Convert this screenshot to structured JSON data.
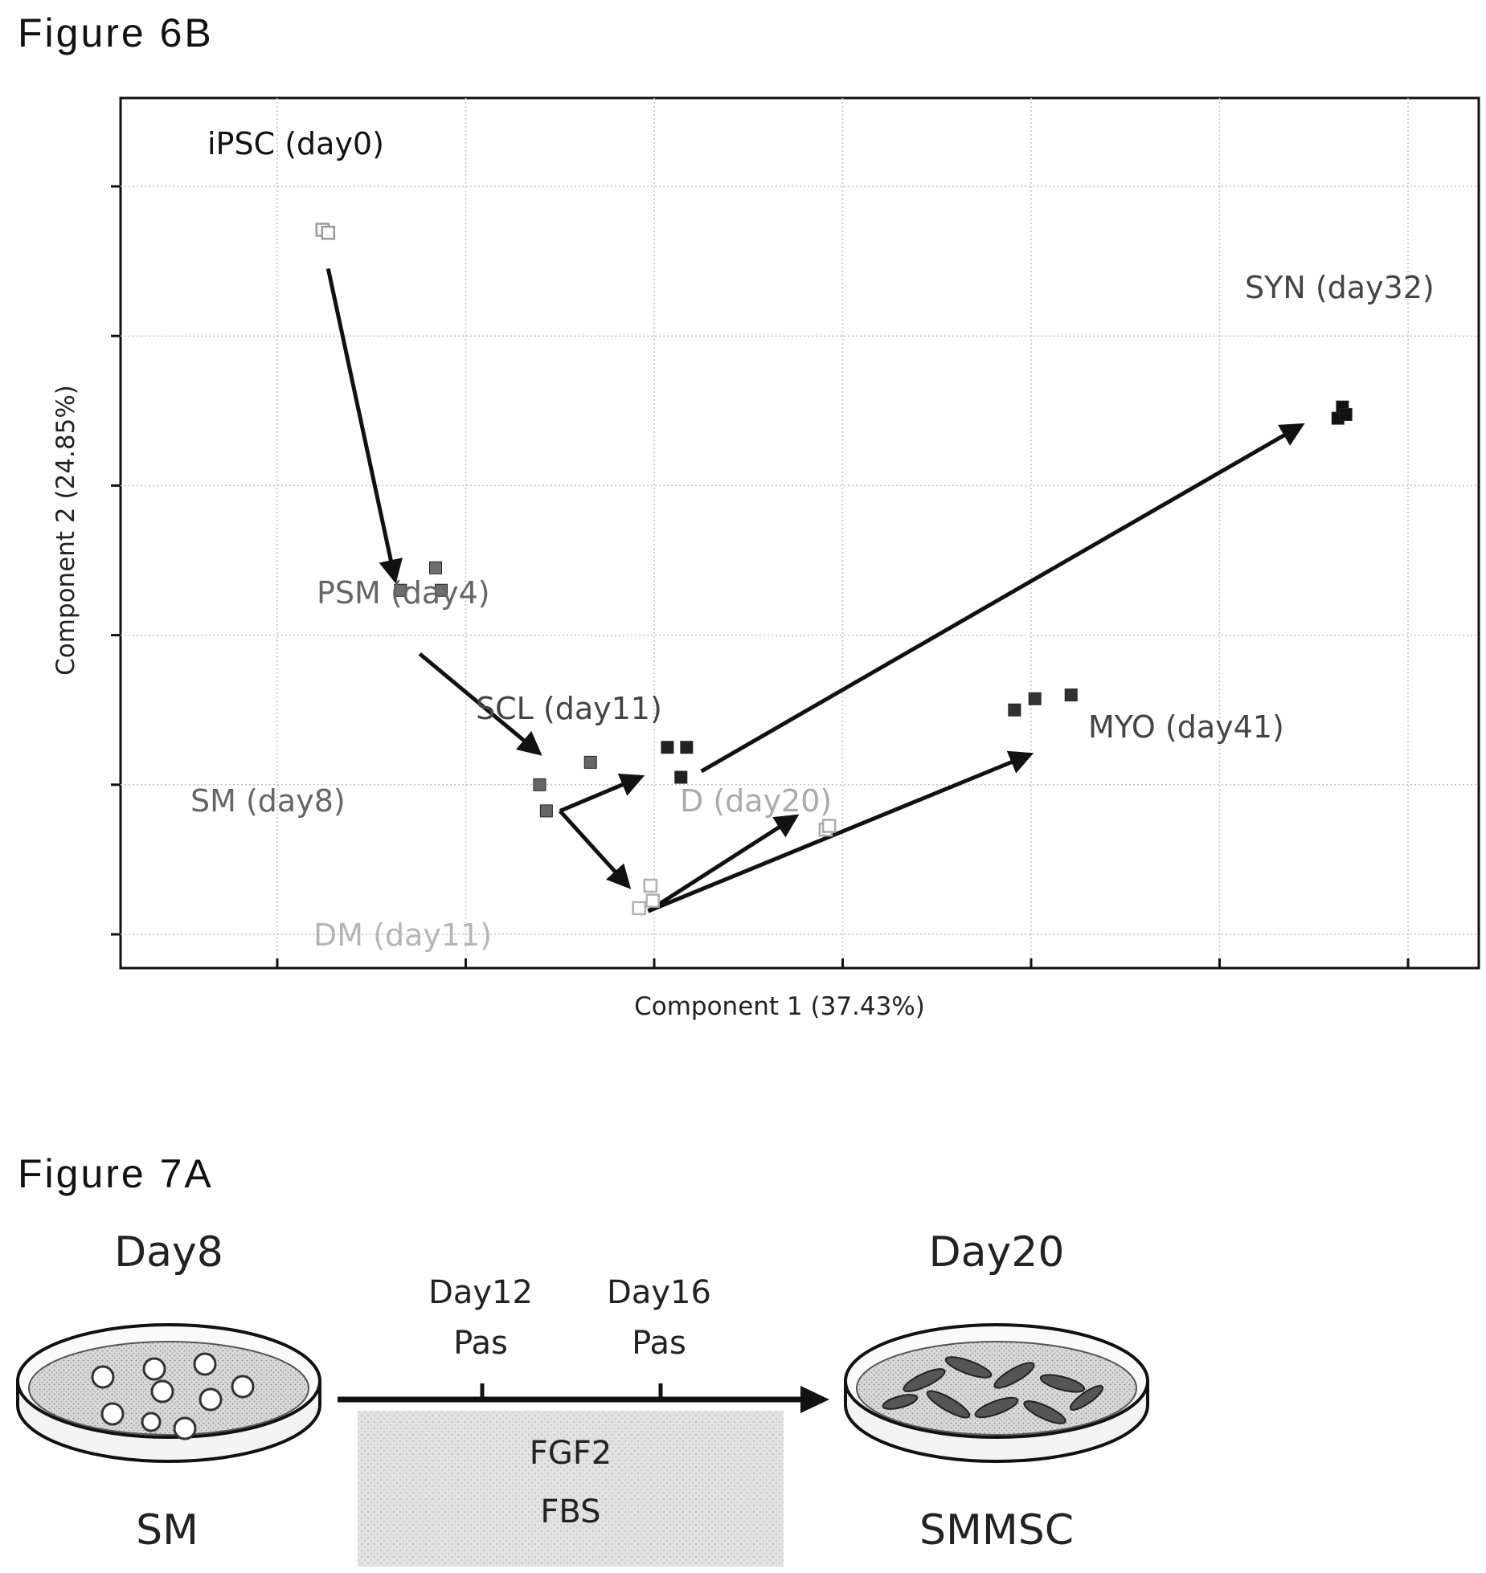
{
  "figure_6b": {
    "label": "Figure 6B"
  },
  "figure_7a": {
    "label": "Figure 7A",
    "start_day": "Day8",
    "end_day": "Day20",
    "passage_1_day": "Day12",
    "passage_1_label": "Pas",
    "passage_2_day": "Day16",
    "passage_2_label": "Pas",
    "medium_line_1": "FGF2",
    "medium_line_2": "FBS",
    "start_cells": "SM",
    "end_cells": "SMMSC"
  },
  "chart_data": {
    "type": "scatter",
    "title": "",
    "xlabel": "Component 1 (37.43%)",
    "ylabel": "Component 2 (24.85%)",
    "xlim": [
      0,
      100
    ],
    "ylim": [
      0,
      100
    ],
    "grid": true,
    "tick_labels_shown": false,
    "series": [
      {
        "name": "iPSC (day0)",
        "color": "#9a9a9a",
        "marker": "open-square",
        "points": [
          [
            4.0,
            94.2
          ],
          [
            4.5,
            93.8
          ]
        ]
      },
      {
        "name": "PSM (day4)",
        "color": "#6e6e6e",
        "marker": "filled-square",
        "points": [
          [
            10.9,
            46.0
          ],
          [
            14.0,
            49.0
          ],
          [
            14.5,
            46.0
          ]
        ]
      },
      {
        "name": "SM (day8)",
        "color": "#666666",
        "marker": "filled-square",
        "points": [
          [
            23.2,
            20.0
          ],
          [
            23.8,
            16.5
          ],
          [
            27.7,
            23.0
          ]
        ]
      },
      {
        "name": "SCL (day11)",
        "color": "#222222",
        "marker": "filled-square",
        "points": [
          [
            34.5,
            25.0
          ],
          [
            36.2,
            25.0
          ],
          [
            35.7,
            21.0
          ]
        ]
      },
      {
        "name": "DM (day11)",
        "color": "#b0b0b0",
        "marker": "open-square",
        "points": [
          [
            32.0,
            3.5
          ],
          [
            33.0,
            6.5
          ],
          [
            33.2,
            4.5
          ]
        ]
      },
      {
        "name": "D (day20)",
        "color": "#aaaaaa",
        "marker": "open-square",
        "points": [
          [
            48.5,
            14.0
          ],
          [
            48.8,
            14.5
          ]
        ]
      },
      {
        "name": "MYO (day41)",
        "color": "#333333",
        "marker": "filled-square",
        "points": [
          [
            65.2,
            30.0
          ],
          [
            67.0,
            31.5
          ],
          [
            70.2,
            32.0
          ]
        ]
      },
      {
        "name": "SYN (day32)",
        "color": "#111111",
        "marker": "filled-square",
        "points": [
          [
            93.8,
            69.0
          ],
          [
            94.2,
            70.5
          ],
          [
            94.5,
            69.5
          ]
        ]
      }
    ],
    "trajectories": [
      {
        "from": [
          4.5,
          89.0
        ],
        "to": [
          10.4,
          47.5
        ]
      },
      {
        "from": [
          12.6,
          37.5
        ],
        "to": [
          23.1,
          24.3
        ]
      },
      {
        "from": [
          25.0,
          16.5
        ],
        "to": [
          32.1,
          21.0
        ]
      },
      {
        "from": [
          25.0,
          16.5
        ],
        "to": [
          31.0,
          6.5
        ]
      },
      {
        "from": [
          32.8,
          3.1
        ],
        "to": [
          45.8,
          15.7
        ]
      },
      {
        "from": [
          32.8,
          3.1
        ],
        "to": [
          66.5,
          24.0
        ]
      },
      {
        "from": [
          37.5,
          21.8
        ],
        "to": [
          90.5,
          68.0
        ]
      }
    ]
  }
}
